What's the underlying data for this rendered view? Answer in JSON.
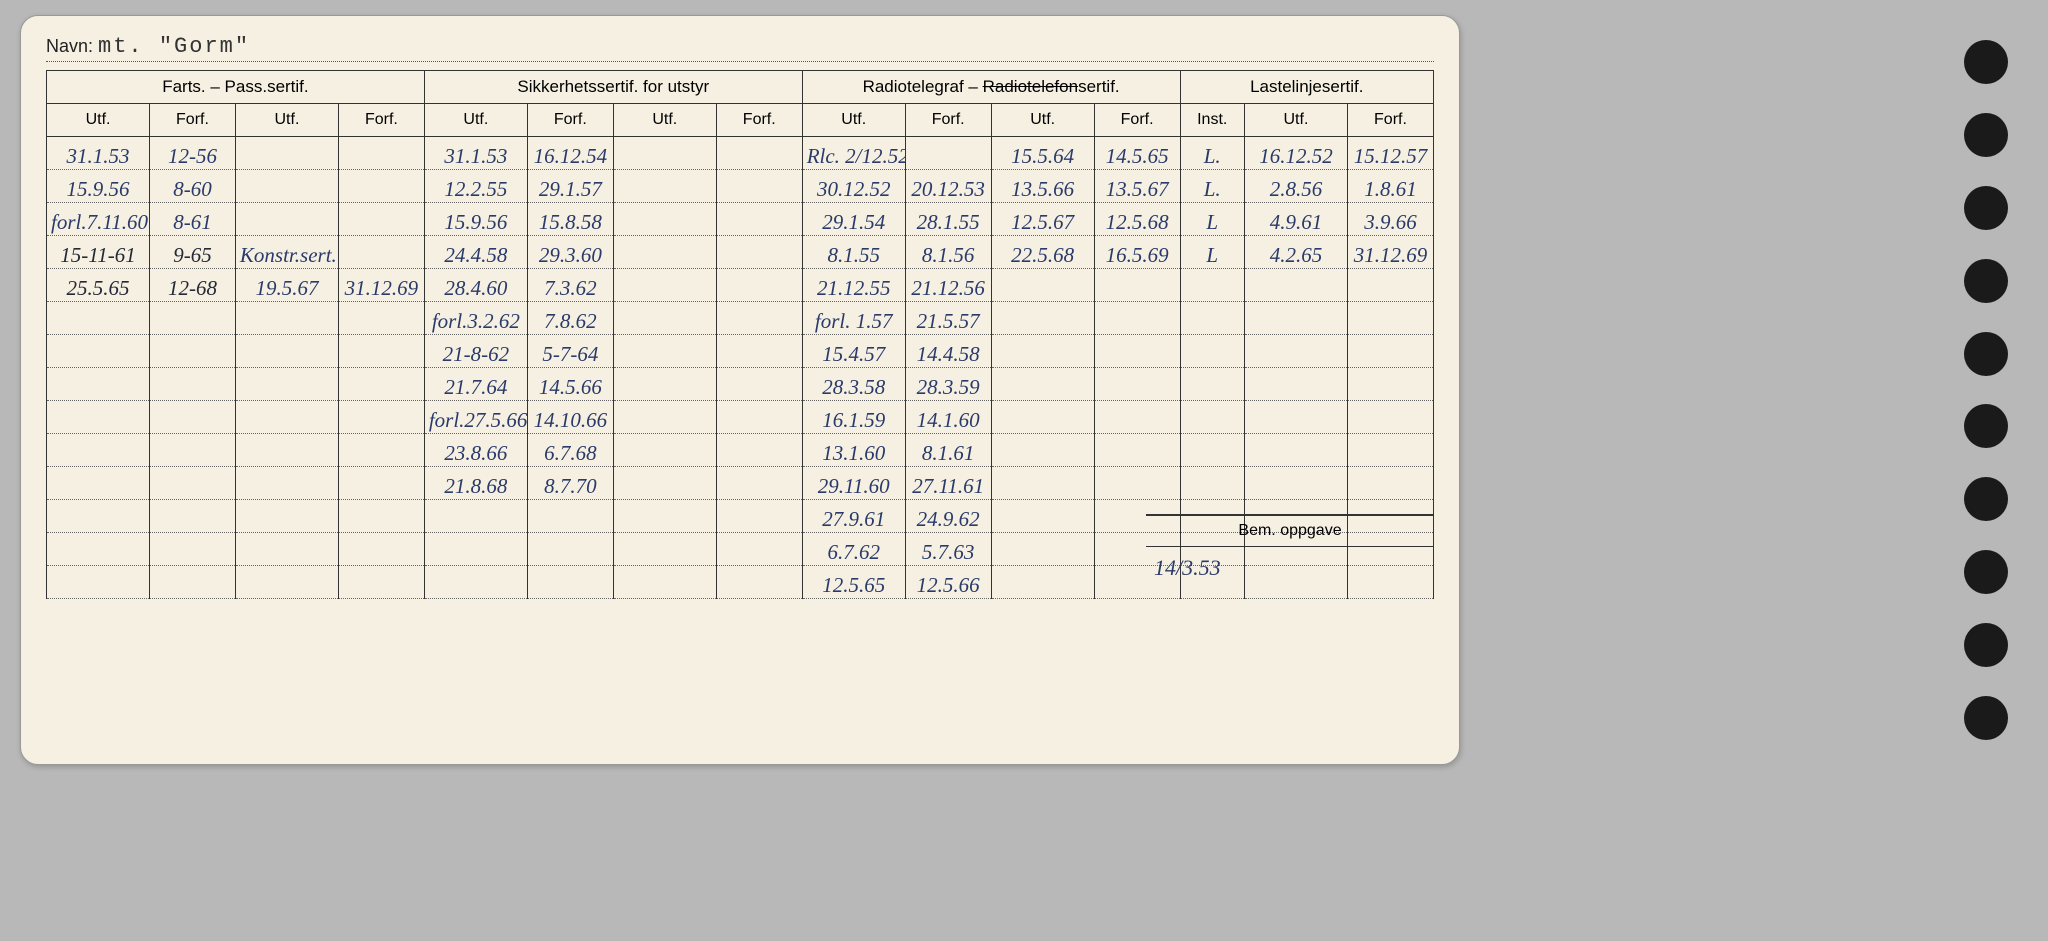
{
  "header": {
    "navn_label": "Navn:",
    "navn_value": "mt. \"Gorm\""
  },
  "columns": {
    "group1": "Farts. – Pass.sertif.",
    "group2": "Sikkerhetssertif. for utstyr",
    "group3_a": "Radiotelegraf – ",
    "group3_strike": "Radiotelefon",
    "group3_b": "sertif.",
    "group4": "Lastelinjesertif.",
    "utf": "Utf.",
    "forf": "Forf.",
    "inst": "Inst."
  },
  "rows": [
    {
      "c": [
        "31.1.53",
        "12-56",
        "",
        "",
        "31.1.53",
        "16.12.54",
        "",
        "",
        "Rlc. 2/12.52",
        "",
        "15.5.64",
        "14.5.65",
        "L.",
        "16.12.52",
        "15.12.57"
      ]
    },
    {
      "c": [
        "15.9.56",
        "8-60",
        "",
        "",
        "12.2.55",
        "29.1.57",
        "",
        "",
        "30.12.52",
        "20.12.53",
        "13.5.66",
        "13.5.67",
        "L.",
        "2.8.56",
        "1.8.61"
      ]
    },
    {
      "c": [
        "forl.7.11.60",
        "8-61",
        "",
        "",
        "15.9.56",
        "15.8.58",
        "",
        "",
        "29.1.54",
        "28.1.55",
        "12.5.67",
        "12.5.68",
        "L",
        "4.9.61",
        "3.9.66"
      ]
    },
    {
      "c": [
        "15-11-61",
        "9-65",
        "Konstr.sert.",
        "",
        "24.4.58",
        "29.3.60",
        "",
        "",
        "8.1.55",
        "8.1.56",
        "22.5.68",
        "16.5.69",
        "L",
        "4.2.65",
        "31.12.69"
      ]
    },
    {
      "c": [
        "25.5.65",
        "12-68",
        "19.5.67",
        "31.12.69",
        "28.4.60",
        "7.3.62",
        "",
        "",
        "21.12.55",
        "21.12.56",
        "",
        "",
        "",
        "",
        ""
      ]
    },
    {
      "c": [
        "",
        "",
        "",
        "",
        "forl.3.2.62",
        "7.8.62",
        "",
        "",
        "forl. 1.57",
        "21.5.57",
        "",
        "",
        "",
        "",
        ""
      ]
    },
    {
      "c": [
        "",
        "",
        "",
        "",
        "21-8-62",
        "5-7-64",
        "",
        "",
        "15.4.57",
        "14.4.58",
        "",
        "",
        "",
        "",
        ""
      ]
    },
    {
      "c": [
        "",
        "",
        "",
        "",
        "21.7.64",
        "14.5.66",
        "",
        "",
        "28.3.58",
        "28.3.59",
        "",
        "",
        "",
        "",
        ""
      ]
    },
    {
      "c": [
        "",
        "",
        "",
        "",
        "forl.27.5.66",
        "14.10.66",
        "",
        "",
        "16.1.59",
        "14.1.60",
        "",
        "",
        "",
        "",
        ""
      ]
    },
    {
      "c": [
        "",
        "",
        "",
        "",
        "23.8.66",
        "6.7.68",
        "",
        "",
        "13.1.60",
        "8.1.61",
        "",
        "",
        "",
        "",
        ""
      ]
    },
    {
      "c": [
        "",
        "",
        "",
        "",
        "21.8.68",
        "8.7.70",
        "",
        "",
        "29.11.60",
        "27.11.61",
        "",
        "",
        "",
        "",
        ""
      ]
    },
    {
      "c": [
        "",
        "",
        "",
        "",
        "",
        "",
        "",
        "",
        "27.9.61",
        "24.9.62",
        "",
        "",
        "",
        "",
        ""
      ]
    },
    {
      "c": [
        "",
        "",
        "",
        "",
        "",
        "",
        "",
        "",
        "6.7.62",
        "5.7.63",
        "",
        "",
        "",
        "",
        ""
      ]
    },
    {
      "c": [
        "",
        "",
        "",
        "",
        "",
        "",
        "",
        "",
        "12.5.65",
        "12.5.66",
        "",
        "",
        "",
        "",
        ""
      ]
    }
  ],
  "bem": {
    "label": "Bem. oppgave",
    "value": "14/3.53"
  },
  "style": {
    "card_bg": "#f5f0e1",
    "page_bg": "#b8b8b8",
    "ink_blue": "#2a3a6a",
    "border": "#333333",
    "handwriting_font": "Brush Script MT",
    "print_font": "Arial",
    "type_font": "Courier New"
  }
}
